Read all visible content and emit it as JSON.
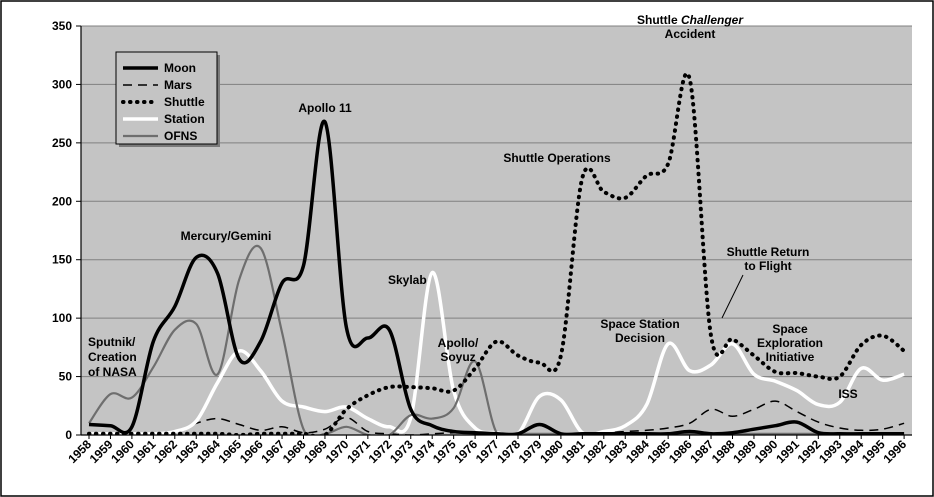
{
  "chart_data": {
    "type": "line",
    "title": "",
    "xlabel": "",
    "ylabel": "",
    "ylim": [
      0,
      350
    ],
    "yticks": [
      0,
      50,
      100,
      150,
      200,
      250,
      300,
      350
    ],
    "x": [
      1958,
      1959,
      1960,
      1961,
      1962,
      1963,
      1964,
      1965,
      1966,
      1967,
      1968,
      1969,
      1970,
      1971,
      1972,
      1973,
      1974,
      1975,
      1976,
      1977,
      1978,
      1979,
      1980,
      1981,
      1982,
      1983,
      1984,
      1985,
      1986,
      1987,
      1988,
      1989,
      1990,
      1991,
      1992,
      1993,
      1994,
      1995,
      1996
    ],
    "x_tick_labels": [
      "1958",
      "1959",
      "1960",
      "1961",
      "1962",
      "1963",
      "1964",
      "1965",
      "1966",
      "1967",
      "1968",
      "1969",
      "1970",
      "1971",
      "1972",
      "1973",
      "1974",
      "1975",
      "1976",
      "1977",
      "1978",
      "1979",
      "1980",
      "1981",
      "1982",
      "1983",
      "1984",
      "1985",
      "1986",
      "1987",
      "1988",
      "1989",
      "1990",
      "1991",
      "1992",
      "1993",
      "1994",
      "1995",
      "1996"
    ],
    "grid": true,
    "legend_position": "top-left",
    "background": "#c4c4c4",
    "series": [
      {
        "name": "Moon",
        "style": "solid-thick",
        "color": "#000000",
        "values": [
          9,
          8,
          7,
          80,
          110,
          152,
          138,
          65,
          80,
          130,
          145,
          268,
          92,
          83,
          90,
          22,
          8,
          3,
          2,
          1,
          1,
          9,
          1,
          1,
          1,
          1,
          1,
          1,
          3,
          1,
          2,
          5,
          8,
          11,
          2,
          1,
          1,
          1,
          1
        ]
      },
      {
        "name": "Mars",
        "style": "dashed",
        "color": "#000000",
        "values": [
          1,
          1,
          1,
          1,
          2,
          10,
          14,
          9,
          4,
          7,
          2,
          5,
          15,
          3,
          1,
          0,
          1,
          2,
          2,
          1,
          1,
          1,
          1,
          1,
          2,
          3,
          4,
          6,
          10,
          22,
          16,
          22,
          29,
          20,
          11,
          6,
          4,
          5,
          10
        ]
      },
      {
        "name": "Shuttle",
        "style": "dotted-thick",
        "color": "#000000",
        "values": [
          1,
          1,
          1,
          1,
          1,
          1,
          1,
          0,
          1,
          1,
          1,
          0,
          22,
          34,
          41,
          41,
          40,
          38,
          57,
          80,
          68,
          62,
          68,
          220,
          208,
          203,
          222,
          232,
          305,
          85,
          82,
          68,
          54,
          53,
          50,
          50,
          77,
          85,
          72
        ]
      },
      {
        "name": "Station",
        "style": "solid-white",
        "color": "#ffffff",
        "values": [
          1,
          1,
          1,
          1,
          3,
          12,
          45,
          72,
          55,
          29,
          24,
          20,
          24,
          14,
          7,
          15,
          139,
          38,
          6,
          2,
          1,
          33,
          30,
          2,
          3,
          8,
          26,
          78,
          55,
          60,
          78,
          52,
          46,
          38,
          26,
          28,
          57,
          47,
          52
        ]
      },
      {
        "name": "OFNS",
        "style": "solid-gray",
        "color": "#6e6e6e",
        "values": [
          10,
          35,
          32,
          58,
          90,
          95,
          52,
          133,
          160,
          88,
          5,
          1,
          7,
          0,
          0,
          17,
          14,
          23,
          63,
          2,
          1,
          1,
          1,
          1,
          1,
          1,
          1,
          1,
          1,
          1,
          1,
          1,
          1,
          1,
          1,
          1,
          1,
          1,
          1
        ]
      }
    ],
    "annotations": [
      {
        "lines": [
          "Sputnik/",
          "Creation",
          "of NASA"
        ]
      },
      {
        "lines": [
          "Mercury/Gemini"
        ]
      },
      {
        "lines": [
          "Apollo 11"
        ]
      },
      {
        "lines": [
          "Skylab"
        ]
      },
      {
        "lines": [
          "Apollo/",
          "Soyuz"
        ]
      },
      {
        "lines": [
          "Shuttle Operations"
        ]
      },
      {
        "lines": [
          "Shuttle Challenger",
          "Accident"
        ]
      },
      {
        "lines": [
          "Space Station",
          "Decision"
        ]
      },
      {
        "lines": [
          "Shuttle Return",
          "to Flight"
        ]
      },
      {
        "lines": [
          "Space",
          "Exploration",
          "Initiative"
        ]
      },
      {
        "lines": [
          "ISS"
        ]
      }
    ]
  }
}
